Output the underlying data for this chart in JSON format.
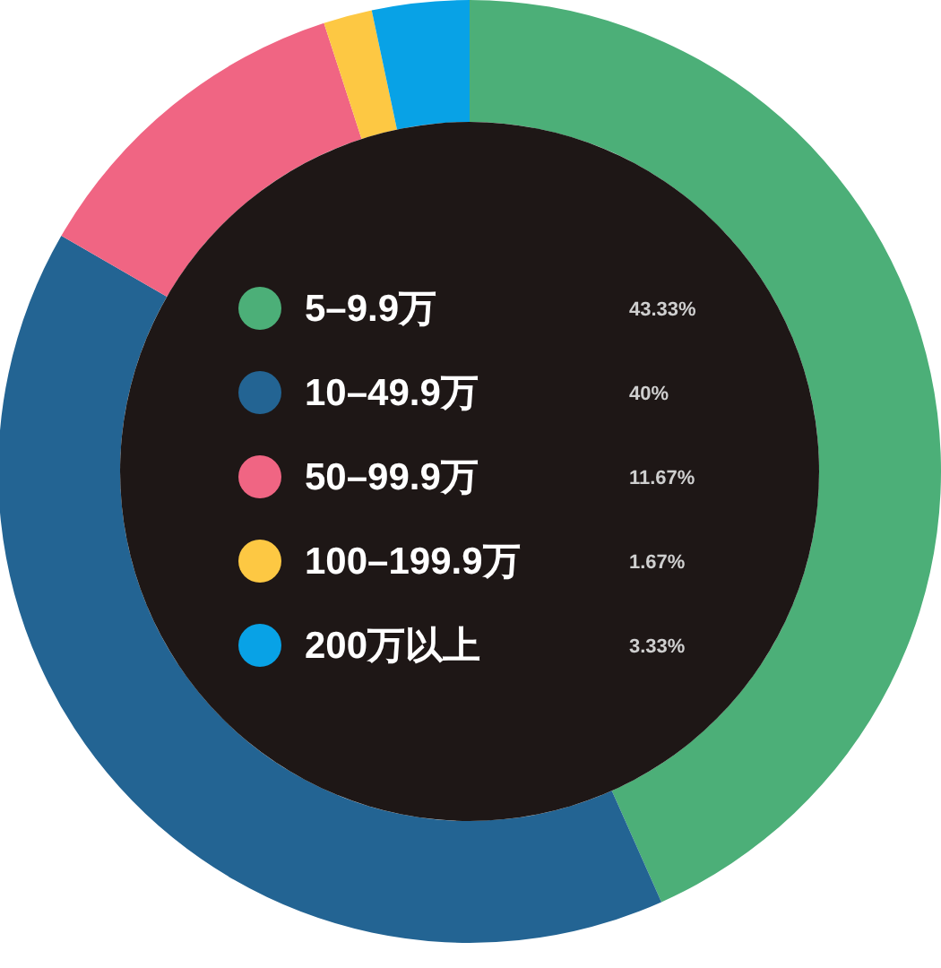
{
  "chart_data": {
    "type": "donut",
    "categories": [
      "5–9.9万",
      "10–49.9万",
      "50–99.9万",
      "100–199.9万",
      "200万以上"
    ],
    "values": [
      43.33,
      40,
      11.67,
      1.67,
      3.33
    ],
    "colors": [
      "#4caf78",
      "#236493",
      "#f06583",
      "#fdc843",
      "#08a2e6"
    ],
    "value_labels": [
      "43.33%",
      "40%",
      "11.67%",
      "1.67%",
      "3.33%"
    ],
    "legend": "center"
  }
}
